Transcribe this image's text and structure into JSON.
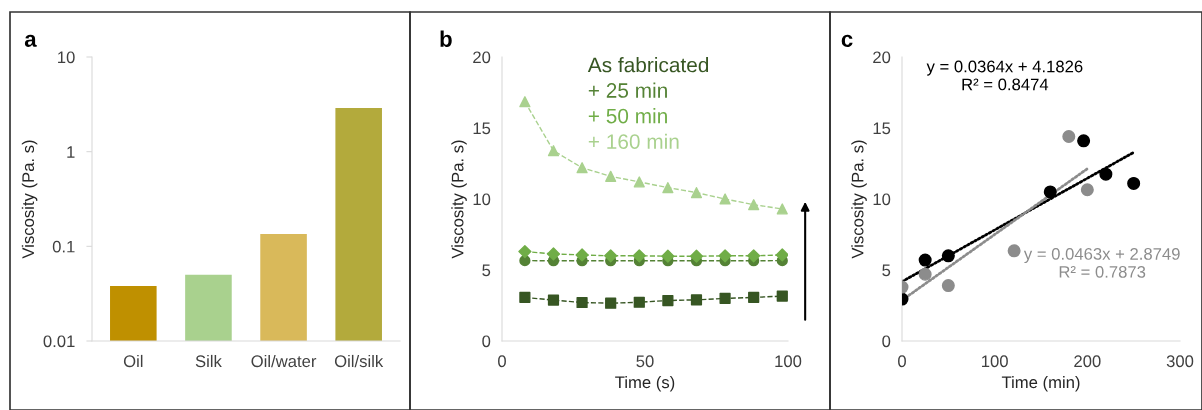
{
  "chart_data": [
    {
      "type": "bar",
      "title": "a",
      "ylabel": "Viscosity (Pa. s)",
      "categories": [
        "Oil",
        "Silk",
        "Oil/water",
        "Oil/silk"
      ],
      "values": [
        0.038,
        0.05,
        0.135,
        2.9
      ],
      "colors": [
        "#bf9000",
        "#a9d18e",
        "#d9b95a",
        "#b3aa3c"
      ],
      "log": "y",
      "ylim": [
        0.01,
        10
      ],
      "yticks": [
        0.01,
        0.1,
        1,
        10
      ],
      "grid": false,
      "legend": false
    },
    {
      "type": "line",
      "title": "b",
      "xlabel": "Time (s)",
      "ylabel": "Viscosity (Pa. s)",
      "xlim": [
        0,
        100
      ],
      "xticks": [
        0,
        50,
        100
      ],
      "ylim": [
        0,
        20
      ],
      "yticks": [
        0,
        5,
        10,
        15,
        20
      ],
      "grid": false,
      "legend": "top",
      "line_style": "dashed",
      "x": [
        8,
        18,
        28,
        38,
        48,
        58,
        68,
        78,
        88,
        98
      ],
      "series": [
        {
          "name": "As fabricated",
          "color": "#375623",
          "marker": "square",
          "values": [
            3.07,
            2.88,
            2.71,
            2.66,
            2.73,
            2.85,
            2.9,
            3.0,
            3.07,
            3.16
          ]
        },
        {
          "name": "+ 25 min",
          "color": "#548235",
          "marker": "circle",
          "values": [
            5.66,
            5.65,
            5.65,
            5.65,
            5.65,
            5.65,
            5.65,
            5.65,
            5.65,
            5.66
          ]
        },
        {
          "name": "+ 50 min",
          "color": "#70ad47",
          "marker": "diamond",
          "values": [
            6.3,
            6.13,
            6.06,
            6.0,
            6.0,
            5.97,
            5.97,
            6.0,
            6.0,
            6.06
          ]
        },
        {
          "name": "+ 160 min",
          "color": "#a9d18e",
          "marker": "triangle",
          "values": [
            16.85,
            13.4,
            12.2,
            11.6,
            11.2,
            10.8,
            10.45,
            10.0,
            9.6,
            9.3
          ]
        }
      ]
    },
    {
      "type": "scatter",
      "title": "c",
      "xlabel": "Time (min)",
      "ylabel": "Viscosity (Pa. s)",
      "xlim": [
        0,
        300
      ],
      "xticks": [
        0,
        100,
        200,
        300
      ],
      "ylim": [
        0,
        20
      ],
      "yticks": [
        0,
        5,
        10,
        15,
        20
      ],
      "grid": false,
      "legend": false,
      "series": [
        {
          "color": "#000000",
          "marker": "circle",
          "x": [
            0,
            25,
            50,
            160,
            196,
            220,
            250
          ],
          "values": [
            2.95,
            5.7,
            6.0,
            10.5,
            14.1,
            11.75,
            11.1
          ]
        },
        {
          "color": "#8c8c8c",
          "marker": "circle",
          "x": [
            0,
            25,
            50,
            121,
            180,
            200
          ],
          "values": [
            3.8,
            4.7,
            3.9,
            6.35,
            14.4,
            10.65
          ]
        },
        {
          "type": "line",
          "line_style": "dotted",
          "marker": "none",
          "color": "#000000",
          "x": [
            0,
            250
          ],
          "values": [
            4.18,
            13.28
          ]
        },
        {
          "type": "line",
          "line_style": "dotted",
          "marker": "none",
          "color": "#8c8c8c",
          "x": [
            0,
            200
          ],
          "values": [
            2.87,
            12.13
          ]
        }
      ],
      "annotations": [
        "y = 0.0364x + 4.1826\nR² = 0.8474",
        "y = 0.0463x + 2.8749\nR² = 0.7873"
      ]
    }
  ]
}
